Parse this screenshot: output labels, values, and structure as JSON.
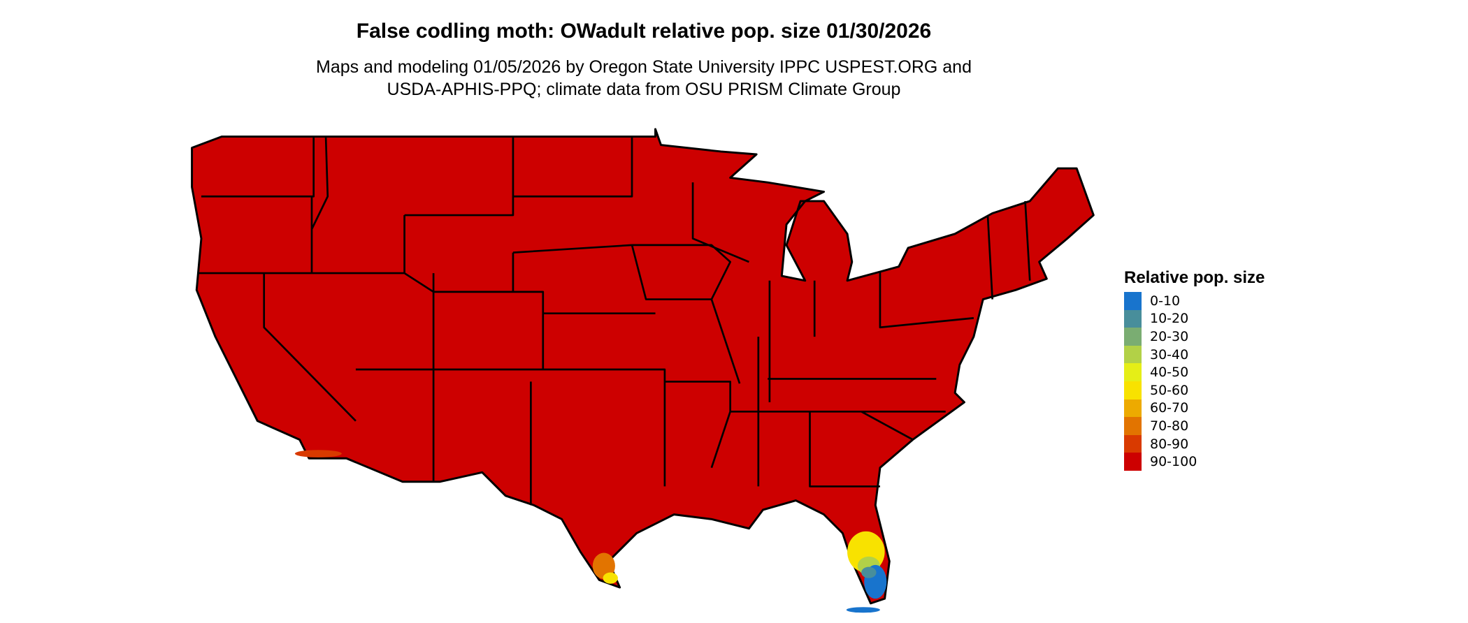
{
  "title": "False codling moth: OWadult relative pop. size 01/30/2026",
  "subtitle_line1": "Maps and modeling 01/05/2026 by Oregon State University IPPC USPEST.ORG and",
  "subtitle_line2": "USDA-APHIS-PPQ; climate data from OSU PRISM Climate Group",
  "legend": {
    "title": "Relative pop. size",
    "items": [
      {
        "label": "0-10",
        "color": "#1874CD"
      },
      {
        "label": "10-20",
        "color": "#488E9B"
      },
      {
        "label": "20-30",
        "color": "#7AAD72"
      },
      {
        "label": "30-40",
        "color": "#B2D147"
      },
      {
        "label": "40-50",
        "color": "#E5EE17"
      },
      {
        "label": "50-60",
        "color": "#F8E200"
      },
      {
        "label": "60-70",
        "color": "#EDAA00"
      },
      {
        "label": "70-80",
        "color": "#E27400"
      },
      {
        "label": "80-90",
        "color": "#D93A00"
      },
      {
        "label": "90-100",
        "color": "#CD0000"
      }
    ]
  },
  "map": {
    "region": "Contiguous United States",
    "dominant_class": "90-100"
  }
}
